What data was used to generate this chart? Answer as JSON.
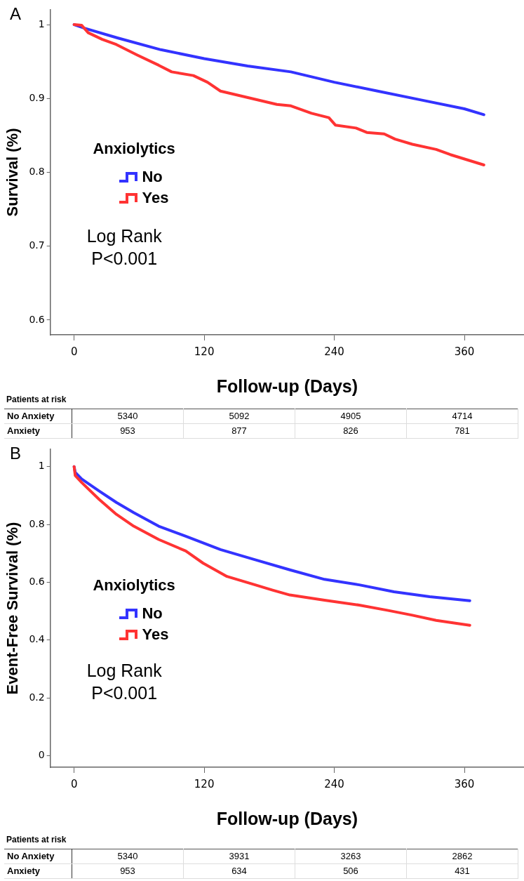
{
  "chart_data": [
    {
      "type": "line",
      "annotations": [
        "A",
        "Log Rank P<0.001"
      ],
      "ylabel": "Survival (%)",
      "xlabel": "Follow-up (Days)",
      "legend_title": "Anxiolytics",
      "legend": "left",
      "grid": false,
      "marker": "none",
      "line_style": "solid",
      "xlim": [
        -22,
        415
      ],
      "ylim": [
        0.58,
        1.02
      ],
      "xticks": [
        0,
        120,
        240,
        360
      ],
      "yticks": [
        0.6,
        0.7,
        0.8,
        0.9,
        1
      ],
      "series": [
        {
          "name": "No",
          "color": "#3333ff",
          "x": [
            0,
            10,
            40,
            80,
            120,
            160,
            200,
            240,
            280,
            320,
            360,
            378
          ],
          "values": [
            1,
            0.995,
            0.982,
            0.966,
            0.954,
            0.944,
            0.936,
            0.922,
            0.91,
            0.898,
            0.886,
            0.878
          ]
        },
        {
          "name": "Yes",
          "color": "#ff3333",
          "x": [
            0,
            7,
            13,
            26,
            39,
            58,
            78,
            90,
            110,
            123,
            135,
            161,
            187,
            200,
            219,
            235,
            241,
            260,
            270,
            286,
            296,
            312,
            334,
            347,
            378
          ],
          "values": [
            1,
            0.999,
            0.989,
            0.98,
            0.973,
            0.959,
            0.945,
            0.936,
            0.931,
            0.922,
            0.91,
            0.901,
            0.892,
            0.89,
            0.88,
            0.874,
            0.864,
            0.86,
            0.854,
            0.852,
            0.845,
            0.838,
            0.831,
            0.824,
            0.81
          ]
        }
      ]
    },
    {
      "type": "other",
      "title": "Patients at risk",
      "annotations": [
        "No Anxiety",
        "5340",
        "5092",
        "4905",
        "4714",
        "Anxiety",
        "953",
        "877",
        "826",
        "781"
      ]
    },
    {
      "type": "line",
      "annotations": [
        "B",
        "Log Rank P<0.001"
      ],
      "ylabel": "Event-Free Survival (%)",
      "xlabel": "Follow-up (Days)",
      "legend_title": "Anxiolytics",
      "legend": "left",
      "grid": false,
      "marker": "none",
      "line_style": "solid",
      "xlim": [
        -22,
        415
      ],
      "ylim": [
        -0.04,
        1.06
      ],
      "xticks": [
        0,
        120,
        240,
        360
      ],
      "yticks": [
        0,
        0.2,
        0.4,
        0.6,
        0.8,
        1
      ],
      "series": [
        {
          "name": "No",
          "color": "#3333ff",
          "x": [
            0,
            1,
            7,
            23,
            39,
            55,
            78,
            103,
            135,
            167,
            199,
            231,
            263,
            295,
            328,
            365
          ],
          "values": [
            1,
            0.98,
            0.957,
            0.916,
            0.876,
            0.841,
            0.794,
            0.759,
            0.713,
            0.678,
            0.643,
            0.61,
            0.591,
            0.567,
            0.55,
            0.536
          ]
        },
        {
          "name": "Yes",
          "color": "#ff3333",
          "x": [
            0,
            1,
            7,
            23,
            39,
            55,
            78,
            103,
            119,
            141,
            167,
            183,
            199,
            231,
            263,
            289,
            312,
            334,
            365
          ],
          "values": [
            1,
            0.969,
            0.945,
            0.887,
            0.835,
            0.794,
            0.748,
            0.708,
            0.666,
            0.62,
            0.591,
            0.573,
            0.556,
            0.538,
            0.521,
            0.503,
            0.486,
            0.468,
            0.451
          ]
        }
      ]
    },
    {
      "type": "other",
      "title": "Patients at risk",
      "annotations": [
        "No Anxiety",
        "5340",
        "3931",
        "3263",
        "2862",
        "Anxiety",
        "953",
        "634",
        "506",
        "431"
      ]
    }
  ]
}
